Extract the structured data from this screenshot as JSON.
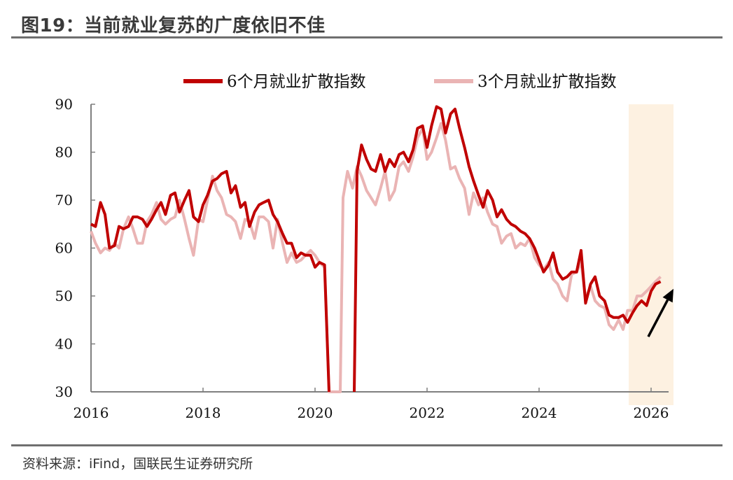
{
  "header": {
    "title": "图19：当前就业复苏的广度依旧不佳"
  },
  "footer": {
    "source": "资料来源：iFind，国联民生证券研究所"
  },
  "colors": {
    "series1": "#c00000",
    "series2": "#eab4b4",
    "highlight": "#fdf1e1",
    "arrow": "#000000"
  },
  "chart_data": {
    "type": "line",
    "ylim": [
      30,
      90
    ],
    "y_ticks": [
      "90",
      "80",
      "70",
      "60",
      "50",
      "40",
      "30"
    ],
    "x_ticks": [
      "2016",
      "2018",
      "2020",
      "2022",
      "2024",
      "2026"
    ],
    "legend_position": "top",
    "highlight_band_x": [
      2025.6,
      2026.4
    ],
    "annotation_arrow": {
      "from": [
        2025.95,
        41.5
      ],
      "to": [
        2026.4,
        51.5
      ]
    },
    "series": [
      {
        "name": "6个月就业扩散指数",
        "points": [
          [
            2016.0,
            65
          ],
          [
            2016.08,
            64.5
          ],
          [
            2016.17,
            69.5
          ],
          [
            2016.25,
            67
          ],
          [
            2016.33,
            60
          ],
          [
            2016.42,
            60.5
          ],
          [
            2016.5,
            64.5
          ],
          [
            2016.58,
            64
          ],
          [
            2016.67,
            64.5
          ],
          [
            2016.75,
            66.5
          ],
          [
            2016.83,
            66.5
          ],
          [
            2016.92,
            66
          ],
          [
            2017.0,
            64.5
          ],
          [
            2017.08,
            66
          ],
          [
            2017.17,
            68
          ],
          [
            2017.25,
            69.5
          ],
          [
            2017.33,
            67
          ],
          [
            2017.42,
            71
          ],
          [
            2017.5,
            71.5
          ],
          [
            2017.58,
            67.5
          ],
          [
            2017.67,
            70
          ],
          [
            2017.75,
            72
          ],
          [
            2017.83,
            66.5
          ],
          [
            2017.92,
            65.5
          ],
          [
            2018.0,
            69
          ],
          [
            2018.08,
            71
          ],
          [
            2018.17,
            74
          ],
          [
            2018.25,
            74.5
          ],
          [
            2018.33,
            75.5
          ],
          [
            2018.42,
            76
          ],
          [
            2018.5,
            71.5
          ],
          [
            2018.58,
            73
          ],
          [
            2018.67,
            68.5
          ],
          [
            2018.75,
            69.5
          ],
          [
            2018.83,
            64.5
          ],
          [
            2018.92,
            67.5
          ],
          [
            2019.0,
            69
          ],
          [
            2019.08,
            69.5
          ],
          [
            2019.17,
            70
          ],
          [
            2019.25,
            67
          ],
          [
            2019.33,
            65.5
          ],
          [
            2019.42,
            63
          ],
          [
            2019.5,
            61
          ],
          [
            2019.58,
            61
          ],
          [
            2019.67,
            58
          ],
          [
            2019.75,
            59
          ],
          [
            2019.83,
            58.5
          ],
          [
            2019.92,
            58.5
          ],
          [
            2020.0,
            56
          ],
          [
            2020.08,
            57
          ],
          [
            2020.17,
            56.5
          ],
          [
            2020.25,
            30
          ]
        ]
      },
      {
        "name": "6个月就业扩散指数 (2020-)",
        "points": [
          [
            2020.7,
            30
          ],
          [
            2020.75,
            76
          ],
          [
            2020.83,
            81.5
          ],
          [
            2020.92,
            78.5
          ],
          [
            2021.0,
            76.5
          ],
          [
            2021.08,
            76
          ],
          [
            2021.17,
            79.5
          ],
          [
            2021.25,
            76
          ],
          [
            2021.33,
            78.5
          ],
          [
            2021.42,
            77
          ],
          [
            2021.5,
            79.5
          ],
          [
            2021.58,
            80
          ],
          [
            2021.67,
            78
          ],
          [
            2021.75,
            80.5
          ],
          [
            2021.83,
            85
          ],
          [
            2021.92,
            85.5
          ],
          [
            2022.0,
            81
          ],
          [
            2022.08,
            85.5
          ],
          [
            2022.17,
            89.5
          ],
          [
            2022.25,
            89
          ],
          [
            2022.33,
            84
          ],
          [
            2022.42,
            88
          ],
          [
            2022.5,
            89
          ],
          [
            2022.58,
            85
          ],
          [
            2022.67,
            81
          ],
          [
            2022.75,
            77
          ],
          [
            2022.83,
            74
          ],
          [
            2022.92,
            71
          ],
          [
            2023.0,
            68.5
          ],
          [
            2023.08,
            72
          ],
          [
            2023.17,
            70
          ],
          [
            2023.25,
            66.5
          ],
          [
            2023.33,
            68
          ],
          [
            2023.42,
            66
          ],
          [
            2023.5,
            65
          ],
          [
            2023.58,
            64.5
          ],
          [
            2023.67,
            63.5
          ],
          [
            2023.75,
            63
          ],
          [
            2023.83,
            62
          ],
          [
            2023.92,
            60
          ],
          [
            2024.0,
            57.5
          ],
          [
            2024.08,
            55
          ],
          [
            2024.17,
            56.5
          ],
          [
            2024.25,
            59
          ],
          [
            2024.33,
            55
          ],
          [
            2024.42,
            53.5
          ],
          [
            2024.5,
            54
          ],
          [
            2024.58,
            55
          ],
          [
            2024.67,
            55
          ],
          [
            2024.75,
            59.5
          ],
          [
            2024.83,
            48.5
          ],
          [
            2024.92,
            52.5
          ],
          [
            2025.0,
            54
          ],
          [
            2025.08,
            50
          ],
          [
            2025.17,
            49
          ],
          [
            2025.25,
            46
          ],
          [
            2025.33,
            45.5
          ],
          [
            2025.42,
            45.5
          ],
          [
            2025.5,
            46
          ],
          [
            2025.58,
            44.5
          ],
          [
            2025.67,
            46.5
          ],
          [
            2025.75,
            48
          ],
          [
            2025.83,
            49
          ],
          [
            2025.92,
            48
          ],
          [
            2026.0,
            51
          ],
          [
            2026.08,
            52.5
          ],
          [
            2026.17,
            53
          ]
        ]
      },
      {
        "name": "3个月就业扩散指数",
        "points": [
          [
            2016.0,
            63.5
          ],
          [
            2016.08,
            61
          ],
          [
            2016.17,
            59
          ],
          [
            2016.25,
            60
          ],
          [
            2016.33,
            59.5
          ],
          [
            2016.42,
            61
          ],
          [
            2016.5,
            60
          ],
          [
            2016.58,
            64
          ],
          [
            2016.67,
            66.5
          ],
          [
            2016.75,
            64
          ],
          [
            2016.83,
            61
          ],
          [
            2016.92,
            61
          ],
          [
            2017.0,
            65.5
          ],
          [
            2017.08,
            67
          ],
          [
            2017.17,
            69.5
          ],
          [
            2017.25,
            66
          ],
          [
            2017.33,
            65
          ],
          [
            2017.42,
            66
          ],
          [
            2017.5,
            66.5
          ],
          [
            2017.58,
            70
          ],
          [
            2017.67,
            66
          ],
          [
            2017.75,
            62
          ],
          [
            2017.83,
            58.5
          ],
          [
            2017.92,
            66
          ],
          [
            2018.0,
            65.5
          ],
          [
            2018.08,
            70
          ],
          [
            2018.17,
            75
          ],
          [
            2018.25,
            72
          ],
          [
            2018.33,
            70.5
          ],
          [
            2018.42,
            67
          ],
          [
            2018.5,
            66.5
          ],
          [
            2018.58,
            65.5
          ],
          [
            2018.67,
            62
          ],
          [
            2018.75,
            66
          ],
          [
            2018.83,
            65.5
          ],
          [
            2018.92,
            62
          ],
          [
            2019.0,
            66.5
          ],
          [
            2019.08,
            66.5
          ],
          [
            2019.17,
            65.5
          ],
          [
            2019.25,
            60
          ],
          [
            2019.33,
            66
          ],
          [
            2019.42,
            61
          ],
          [
            2019.5,
            57
          ],
          [
            2019.58,
            59
          ],
          [
            2019.67,
            57
          ],
          [
            2019.75,
            57.5
          ],
          [
            2019.83,
            58.5
          ],
          [
            2019.92,
            59.5
          ],
          [
            2020.0,
            58.5
          ],
          [
            2020.08,
            57
          ],
          [
            2020.17,
            56
          ],
          [
            2020.25,
            30
          ],
          [
            2020.45,
            30
          ],
          [
            2020.5,
            70.5
          ],
          [
            2020.58,
            76
          ],
          [
            2020.67,
            72.5
          ],
          [
            2020.75,
            77
          ],
          [
            2020.83,
            75
          ],
          [
            2020.92,
            72
          ],
          [
            2021.0,
            70.5
          ],
          [
            2021.08,
            69
          ],
          [
            2021.17,
            72.5
          ],
          [
            2021.25,
            76
          ],
          [
            2021.33,
            70
          ],
          [
            2021.42,
            72
          ],
          [
            2021.5,
            77
          ],
          [
            2021.58,
            78
          ],
          [
            2021.67,
            76
          ],
          [
            2021.75,
            79
          ],
          [
            2021.83,
            83
          ],
          [
            2021.92,
            85
          ],
          [
            2022.0,
            78.5
          ],
          [
            2022.08,
            80
          ],
          [
            2022.17,
            83
          ],
          [
            2022.25,
            86
          ],
          [
            2022.33,
            82.5
          ],
          [
            2022.42,
            76.5
          ],
          [
            2022.5,
            77
          ],
          [
            2022.58,
            74.5
          ],
          [
            2022.67,
            72.5
          ],
          [
            2022.75,
            67
          ],
          [
            2022.83,
            71.5
          ],
          [
            2022.92,
            69
          ],
          [
            2023.0,
            70.5
          ],
          [
            2023.08,
            67.5
          ],
          [
            2023.17,
            65
          ],
          [
            2023.25,
            64.5
          ],
          [
            2023.33,
            61
          ],
          [
            2023.42,
            62.5
          ],
          [
            2023.5,
            63
          ],
          [
            2023.58,
            60
          ],
          [
            2023.67,
            61
          ],
          [
            2023.75,
            60.5
          ],
          [
            2023.83,
            62
          ],
          [
            2023.92,
            58
          ],
          [
            2024.0,
            56.5
          ],
          [
            2024.08,
            55.5
          ],
          [
            2024.17,
            57
          ],
          [
            2024.25,
            53.5
          ],
          [
            2024.33,
            52.5
          ],
          [
            2024.42,
            50
          ],
          [
            2024.5,
            49
          ],
          [
            2024.58,
            54.5
          ],
          [
            2024.67,
            55
          ],
          [
            2024.75,
            57
          ],
          [
            2024.83,
            49.5
          ],
          [
            2024.92,
            52
          ],
          [
            2025.0,
            49
          ],
          [
            2025.08,
            48
          ],
          [
            2025.17,
            47.5
          ],
          [
            2025.25,
            44
          ],
          [
            2025.33,
            43
          ],
          [
            2025.42,
            45
          ],
          [
            2025.5,
            43
          ],
          [
            2025.58,
            47
          ],
          [
            2025.67,
            47
          ],
          [
            2025.75,
            50
          ],
          [
            2025.83,
            50
          ],
          [
            2025.92,
            51
          ],
          [
            2026.0,
            52
          ],
          [
            2026.08,
            53
          ],
          [
            2026.17,
            54
          ]
        ]
      }
    ]
  }
}
